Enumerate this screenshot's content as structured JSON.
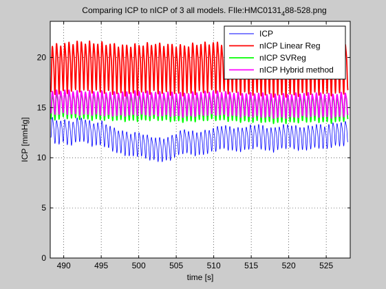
{
  "figure": {
    "background": "#cccccc",
    "axes_background": "#ffffff"
  },
  "chart_data": {
    "type": "line",
    "title_prefix": "Comparing ICP to nICP of 3 all models. FIle:HMC0131",
    "title_subscript": "4",
    "title_suffix": "88-528.png",
    "xlabel": "time [s]",
    "ylabel": "ICP [mmHg]",
    "xlim": [
      488.2,
      528.2
    ],
    "ylim": [
      0,
      23.6
    ],
    "xticks": [
      490,
      495,
      500,
      505,
      510,
      515,
      520,
      525
    ],
    "yticks": [
      0,
      5,
      10,
      15,
      20
    ],
    "grid": true,
    "grid_style": "dotted",
    "legend_position": "top-right",
    "series": [
      {
        "name": "ICP",
        "color": "#0000ff",
        "line_width": 0.8,
        "x": [
          488.3,
          489.0,
          490.0,
          491.0,
          492.0,
          493.0,
          494.0,
          495.0,
          496.0,
          497.0,
          498.0,
          499.0,
          500.0,
          501.0,
          502.0,
          503.0,
          504.0,
          505.0,
          506.0,
          507.0,
          508.0,
          509.0,
          510.0,
          511.0,
          512.0,
          513.0,
          514.0,
          515.0,
          516.0,
          517.0,
          518.0,
          519.0,
          520.0,
          521.0,
          522.0,
          523.0,
          524.0,
          525.0,
          526.0,
          527.0,
          527.9
        ],
        "y": [
          13.2,
          12.6,
          12.8,
          12.5,
          13.0,
          12.8,
          12.4,
          12.6,
          12.2,
          11.8,
          11.6,
          11.4,
          11.5,
          11.2,
          11.0,
          10.9,
          11.0,
          11.4,
          11.8,
          11.6,
          11.5,
          11.7,
          11.9,
          12.2,
          12.1,
          11.9,
          12.0,
          12.2,
          12.3,
          12.0,
          11.9,
          12.2,
          12.3,
          12.1,
          12.0,
          12.2,
          12.3,
          12.1,
          12.5,
          12.4,
          12.8
        ],
        "oscillation_amplitude": 1.3,
        "oscillation_period": 0.55
      },
      {
        "name": "nICP Linear Reg",
        "color": "#ff0000",
        "line_width": 1.8,
        "x": [
          488.3,
          490.0,
          492.0,
          494.0,
          496.0,
          498.0,
          500.0,
          502.0,
          504.0,
          506.0,
          508.0,
          510.0,
          512.0,
          514.0,
          516.0,
          518.0,
          520.0,
          522.0,
          524.0,
          526.0,
          527.9
        ],
        "y": [
          19.0,
          19.2,
          19.4,
          19.3,
          19.2,
          19.0,
          19.1,
          19.2,
          19.1,
          19.0,
          19.2,
          19.3,
          19.2,
          19.1,
          19.0,
          18.9,
          18.9,
          19.0,
          19.1,
          19.0,
          19.3
        ],
        "oscillation_amplitude": 2.7,
        "oscillation_period": 0.55
      },
      {
        "name": "nICP SVReg",
        "color": "#00ff00",
        "line_width": 1.8,
        "x": [
          488.3,
          490.0,
          492.0,
          494.0,
          496.0,
          498.0,
          500.0,
          502.0,
          504.0,
          506.0,
          508.0,
          510.0,
          512.0,
          514.0,
          516.0,
          518.0,
          520.0,
          522.0,
          524.0,
          526.0,
          527.9
        ],
        "y": [
          15.2,
          15.5,
          15.4,
          15.3,
          15.3,
          15.2,
          15.2,
          15.3,
          15.2,
          15.1,
          15.2,
          15.3,
          15.2,
          15.1,
          15.1,
          15.0,
          15.0,
          15.1,
          15.1,
          15.0,
          15.3
        ],
        "oscillation_amplitude": 1.5,
        "oscillation_period": 0.55
      },
      {
        "name": "nICP Hybrid method",
        "color": "#ff00ff",
        "line_width": 1.8,
        "x": [
          488.3,
          490.0,
          492.0,
          494.0,
          496.0,
          498.0,
          500.0,
          502.0,
          504.0,
          506.0,
          508.0,
          510.0,
          512.0,
          514.0,
          516.0,
          518.0,
          520.0,
          522.0,
          524.0,
          526.0,
          527.9
        ],
        "y": [
          15.6,
          15.7,
          15.6,
          15.6,
          15.5,
          15.5,
          15.6,
          15.5,
          15.5,
          15.4,
          15.5,
          15.6,
          15.5,
          15.4,
          15.4,
          15.3,
          15.3,
          15.4,
          15.4,
          15.3,
          15.5
        ],
        "oscillation_amplitude": 1.3,
        "oscillation_period": 0.55
      }
    ]
  }
}
